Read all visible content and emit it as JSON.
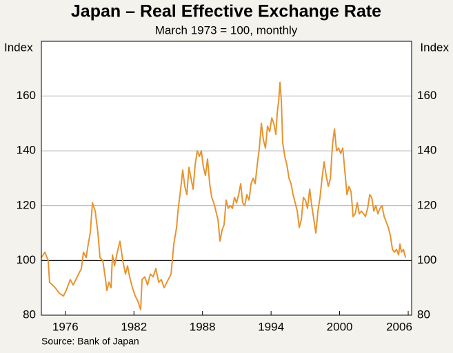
{
  "chart_data": {
    "type": "line",
    "title": "Japan – Real Effective Exchange Rate",
    "subtitle": "March 1973 = 100, monthly",
    "y_label": "Index",
    "y2_label": "Index",
    "source": "Source: Bank of Japan",
    "xlim": [
      1973.9,
      2006.3
    ],
    "xticks": [
      1976,
      1982,
      1988,
      1994,
      2000,
      2006
    ],
    "ylim": [
      80,
      180
    ],
    "yticks": [
      80,
      100,
      120,
      140,
      160
    ],
    "reference_line": 100,
    "grid": true,
    "series": [
      {
        "name": "Real effective exchange rate",
        "color": "#e8932f",
        "x": [
          1973.9,
          1974.2,
          1974.5,
          1974.62,
          1974.87,
          1975.11,
          1975.47,
          1975.83,
          1976.07,
          1976.43,
          1976.68,
          1977.04,
          1977.4,
          1977.58,
          1977.82,
          1978.0,
          1978.18,
          1978.37,
          1978.61,
          1978.85,
          1979.03,
          1979.27,
          1979.45,
          1979.63,
          1979.81,
          1980.0,
          1980.12,
          1980.3,
          1980.54,
          1980.78,
          1981.02,
          1981.26,
          1981.44,
          1981.62,
          1981.87,
          1982.11,
          1982.35,
          1982.59,
          1982.71,
          1982.95,
          1983.19,
          1983.44,
          1983.68,
          1983.92,
          1984.16,
          1984.4,
          1984.64,
          1985.0,
          1985.25,
          1985.49,
          1985.73,
          1985.85,
          1986.09,
          1986.27,
          1986.45,
          1986.63,
          1986.81,
          1987.0,
          1987.18,
          1987.36,
          1987.54,
          1987.72,
          1987.9,
          1988.08,
          1988.26,
          1988.44,
          1988.63,
          1988.81,
          1988.99,
          1989.17,
          1989.35,
          1989.53,
          1989.71,
          1989.89,
          1990.07,
          1990.25,
          1990.44,
          1990.62,
          1990.8,
          1990.98,
          1991.16,
          1991.34,
          1991.52,
          1991.7,
          1991.88,
          1992.07,
          1992.25,
          1992.43,
          1992.61,
          1992.79,
          1992.97,
          1993.15,
          1993.33,
          1993.51,
          1993.69,
          1993.88,
          1994.06,
          1994.24,
          1994.42,
          1994.54,
          1994.66,
          1994.78,
          1994.9,
          1995.02,
          1995.2,
          1995.38,
          1995.57,
          1995.75,
          1995.93,
          1996.11,
          1996.29,
          1996.47,
          1996.65,
          1996.83,
          1997.01,
          1997.19,
          1997.38,
          1997.56,
          1997.74,
          1997.92,
          1998.1,
          1998.28,
          1998.46,
          1998.64,
          1998.82,
          1999.01,
          1999.19,
          1999.37,
          1999.55,
          1999.73,
          1999.91,
          2000.09,
          2000.27,
          2000.45,
          2000.64,
          2000.82,
          2001.0,
          2001.18,
          2001.36,
          2001.54,
          2001.72,
          2001.9,
          2002.08,
          2002.26,
          2002.45,
          2002.63,
          2002.81,
          2002.99,
          2003.17,
          2003.35,
          2003.53,
          2003.71,
          2003.89,
          2004.08,
          2004.26,
          2004.44,
          2004.62,
          2004.8,
          2004.98,
          2005.16,
          2005.28,
          2005.4,
          2005.58,
          2005.77
        ],
        "values": [
          101,
          103,
          100,
          92,
          91,
          90,
          88,
          87,
          89,
          93,
          91,
          94,
          97,
          103,
          101,
          106,
          110,
          121,
          118,
          110,
          101,
          100,
          95,
          89,
          92,
          90,
          102,
          98,
          103,
          107,
          100,
          95,
          98,
          94,
          90,
          87,
          85,
          82,
          93,
          94,
          91,
          95,
          94,
          97,
          92,
          93,
          90,
          93,
          95,
          106,
          112,
          118,
          126,
          133,
          127,
          124,
          134,
          130,
          126,
          135,
          140,
          138,
          140,
          134,
          131,
          137,
          128,
          123,
          121,
          118,
          115,
          107,
          111,
          113,
          122,
          119,
          120,
          119,
          123,
          121,
          124,
          128,
          121,
          120,
          124,
          122,
          128,
          130,
          128,
          135,
          141,
          150,
          144,
          141,
          149,
          147,
          152,
          150,
          146,
          154,
          158,
          165,
          158,
          143,
          138,
          135,
          130,
          128,
          124,
          121,
          118,
          112,
          115,
          123,
          122,
          119,
          126,
          120,
          115,
          110,
          118,
          123,
          130,
          136,
          131,
          127,
          130,
          142,
          148,
          140,
          141,
          139,
          141,
          133,
          124,
          127,
          125,
          116,
          117,
          121,
          117,
          118,
          117,
          116,
          119,
          124,
          123,
          118,
          120,
          117,
          119,
          120,
          116,
          114,
          112,
          109,
          104,
          103,
          104,
          102,
          106,
          103,
          104,
          101
        ]
      }
    ]
  }
}
